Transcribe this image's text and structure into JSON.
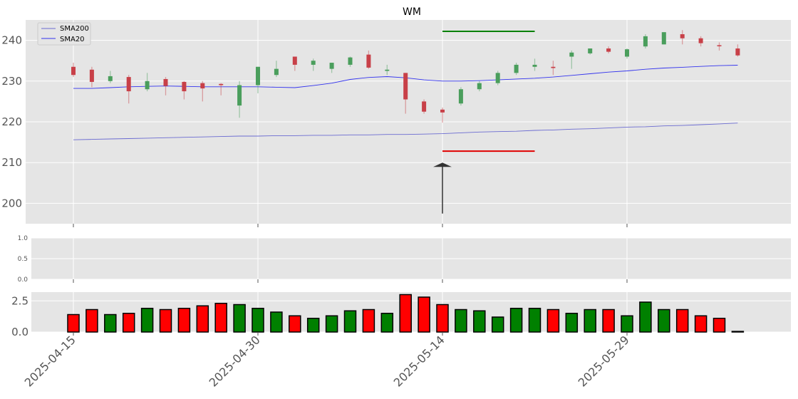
{
  "chart_data": {
    "type": "candlestick",
    "title": "WM",
    "x_tick_labels": [
      "2025-04-15",
      "2025-04-30",
      "2025-05-14",
      "2025-05-29"
    ],
    "x_tick_index": [
      0,
      10,
      20,
      30
    ],
    "price_axis": {
      "ylim": [
        195,
        245
      ],
      "ticks": [
        200,
        210,
        220,
        230,
        240
      ]
    },
    "candles": [
      {
        "date": "2025-04-15",
        "open": 233.5,
        "high": 234.5,
        "low": 231.0,
        "close": 231.5
      },
      {
        "date": "2025-04-16",
        "open": 232.8,
        "high": 233.5,
        "low": 228.5,
        "close": 229.8
      },
      {
        "date": "2025-04-17",
        "open": 230.0,
        "high": 232.5,
        "low": 229.5,
        "close": 231.2
      },
      {
        "date": "2025-04-21",
        "open": 231.0,
        "high": 231.5,
        "low": 224.5,
        "close": 227.5
      },
      {
        "date": "2025-04-22",
        "open": 228.0,
        "high": 232.0,
        "low": 227.5,
        "close": 230.0
      },
      {
        "date": "2025-04-23",
        "open": 230.5,
        "high": 231.0,
        "low": 226.5,
        "close": 228.8
      },
      {
        "date": "2025-04-24",
        "open": 229.8,
        "high": 230.0,
        "low": 225.5,
        "close": 227.5
      },
      {
        "date": "2025-04-25",
        "open": 229.5,
        "high": 230.0,
        "low": 225.0,
        "close": 228.2
      },
      {
        "date": "2025-04-28",
        "open": 229.3,
        "high": 229.5,
        "low": 226.5,
        "close": 229.0
      },
      {
        "date": "2025-04-29",
        "open": 224.0,
        "high": 230.0,
        "low": 221.0,
        "close": 229.0
      },
      {
        "date": "2025-04-30",
        "open": 229.0,
        "high": 233.5,
        "low": 227.0,
        "close": 233.5
      },
      {
        "date": "2025-05-01",
        "open": 231.5,
        "high": 235.0,
        "low": 231.0,
        "close": 233.0
      },
      {
        "date": "2025-05-02",
        "open": 236.0,
        "high": 236.0,
        "low": 232.5,
        "close": 234.0
      },
      {
        "date": "2025-05-05",
        "open": 234.0,
        "high": 235.5,
        "low": 232.5,
        "close": 235.0
      },
      {
        "date": "2025-05-06",
        "open": 233.0,
        "high": 234.5,
        "low": 232.0,
        "close": 234.5
      },
      {
        "date": "2025-05-07",
        "open": 234.0,
        "high": 236.0,
        "low": 233.5,
        "close": 235.8
      },
      {
        "date": "2025-05-08",
        "open": 236.5,
        "high": 237.5,
        "low": 233.0,
        "close": 233.3
      },
      {
        "date": "2025-05-09",
        "open": 232.5,
        "high": 234.0,
        "low": 231.5,
        "close": 232.8
      },
      {
        "date": "2025-05-12",
        "open": 232.0,
        "high": 232.0,
        "low": 222.0,
        "close": 225.5
      },
      {
        "date": "2025-05-13",
        "open": 225.0,
        "high": 225.5,
        "low": 222.0,
        "close": 222.5
      },
      {
        "date": "2025-05-14",
        "open": 223.0,
        "high": 223.5,
        "low": 219.8,
        "close": 222.3
      },
      {
        "date": "2025-05-15",
        "open": 224.5,
        "high": 228.5,
        "low": 224.0,
        "close": 228.0
      },
      {
        "date": "2025-05-16",
        "open": 228.0,
        "high": 230.0,
        "low": 227.5,
        "close": 229.5
      },
      {
        "date": "2025-05-19",
        "open": 229.5,
        "high": 232.5,
        "low": 229.0,
        "close": 232.0
      },
      {
        "date": "2025-05-20",
        "open": 232.0,
        "high": 234.5,
        "low": 231.5,
        "close": 234.0
      },
      {
        "date": "2025-05-21",
        "open": 233.5,
        "high": 235.5,
        "low": 232.5,
        "close": 234.0
      },
      {
        "date": "2025-05-22",
        "open": 233.5,
        "high": 235.0,
        "low": 231.5,
        "close": 233.2
      },
      {
        "date": "2025-05-23",
        "open": 236.0,
        "high": 237.5,
        "low": 233.0,
        "close": 237.0
      },
      {
        "date": "2025-05-27",
        "open": 236.8,
        "high": 238.0,
        "low": 236.5,
        "close": 238.0
      },
      {
        "date": "2025-05-28",
        "open": 238.0,
        "high": 238.5,
        "low": 236.8,
        "close": 237.2
      },
      {
        "date": "2025-05-29",
        "open": 236.0,
        "high": 238.0,
        "low": 235.5,
        "close": 237.8
      },
      {
        "date": "2025-05-30",
        "open": 238.5,
        "high": 241.5,
        "low": 238.0,
        "close": 241.0
      },
      {
        "date": "2025-06-02",
        "open": 239.0,
        "high": 242.0,
        "low": 239.0,
        "close": 242.0
      },
      {
        "date": "2025-06-03",
        "open": 241.5,
        "high": 242.5,
        "low": 239.0,
        "close": 240.5
      },
      {
        "date": "2025-06-04",
        "open": 240.5,
        "high": 241.0,
        "low": 238.5,
        "close": 239.3
      },
      {
        "date": "2025-06-05",
        "open": 238.8,
        "high": 239.5,
        "low": 237.5,
        "close": 238.6
      },
      {
        "date": "2025-06-06",
        "open": 238.0,
        "high": 239.0,
        "low": 236.0,
        "close": 236.3
      }
    ],
    "series": [
      {
        "name": "SMA200",
        "color": "#6b6bd1",
        "values": [
          215.6,
          215.7,
          215.8,
          215.9,
          216.0,
          216.1,
          216.2,
          216.3,
          216.4,
          216.5,
          216.5,
          216.6,
          216.6,
          216.7,
          216.7,
          216.8,
          216.8,
          216.9,
          216.9,
          217.0,
          217.1,
          217.3,
          217.5,
          217.6,
          217.7,
          217.9,
          218.0,
          218.2,
          218.3,
          218.5,
          218.7,
          218.8,
          219.0,
          219.1,
          219.3,
          219.5,
          219.7
        ]
      },
      {
        "name": "SMA20",
        "color": "#3333ee",
        "values": [
          228.2,
          228.2,
          228.4,
          228.6,
          228.7,
          228.8,
          228.7,
          228.6,
          228.6,
          228.6,
          228.6,
          228.5,
          228.4,
          228.9,
          229.5,
          230.4,
          230.9,
          231.1,
          230.8,
          230.3,
          230.0,
          230.0,
          230.1,
          230.3,
          230.5,
          230.7,
          231.0,
          231.4,
          231.8,
          232.2,
          232.5,
          232.9,
          233.2,
          233.4,
          233.6,
          233.8,
          233.9
        ]
      }
    ],
    "annotations": {
      "resistance": {
        "value": 242.2,
        "from_index": 20,
        "to_index": 25,
        "color": "#008000"
      },
      "support": {
        "value": 212.8,
        "from_index": 20,
        "to_index": 25,
        "color": "#e00000"
      },
      "arrow": {
        "index": 20,
        "from": 197.5,
        "to": 210.0,
        "color": "#333333"
      }
    },
    "indicator_axis": {
      "ylim": [
        0,
        1
      ],
      "ticks": [
        "0.0",
        "0.5",
        "1.0"
      ]
    },
    "volume_axis": {
      "ylim": [
        0,
        3.2
      ],
      "ticks": [
        "0.0",
        "2.5"
      ]
    },
    "volume": [
      1.4,
      1.8,
      1.4,
      1.5,
      1.9,
      1.8,
      1.9,
      2.1,
      2.3,
      2.2,
      1.9,
      1.6,
      1.3,
      1.1,
      1.3,
      1.7,
      1.8,
      1.5,
      3.0,
      2.8,
      2.2,
      1.8,
      1.7,
      1.2,
      1.9,
      1.9,
      1.8,
      1.5,
      1.8,
      1.8,
      1.3,
      2.4,
      1.8,
      1.8,
      1.3,
      1.1,
      0.05
    ],
    "legend": {
      "placement": "top-left",
      "entries": [
        "SMA200",
        "SMA20"
      ]
    },
    "colors": {
      "up": "#008000",
      "down": "#ff0000",
      "candle_up": "#4a9e5c",
      "candle_down": "#c84048",
      "background": "#e5e5e5"
    },
    "grid": true
  }
}
